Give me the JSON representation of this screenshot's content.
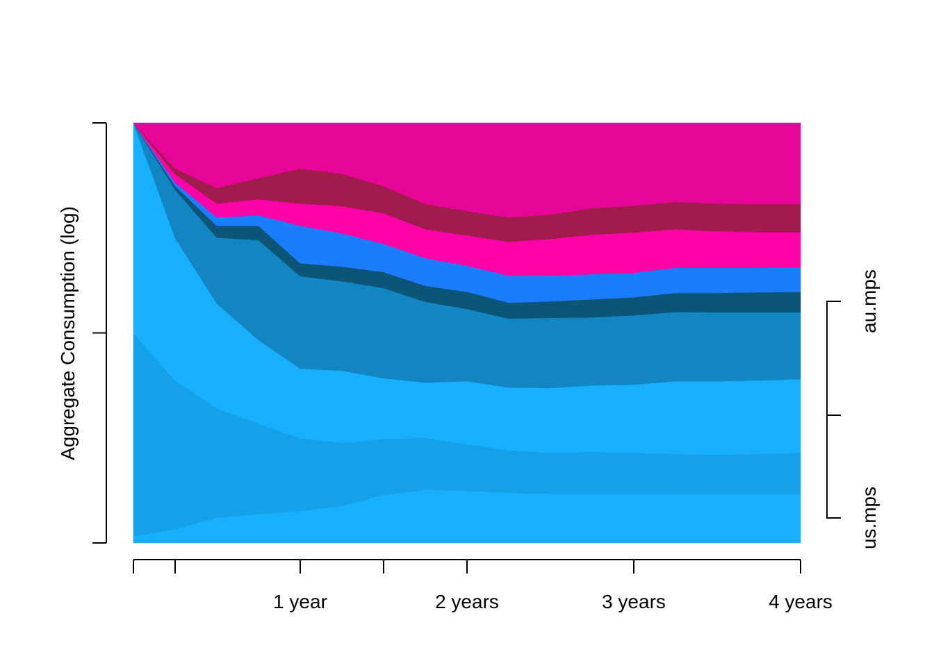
{
  "chart_data": {
    "type": "area",
    "stacked": true,
    "title": "",
    "xlabel": "",
    "ylabel": "Aggregate Consumption (log)",
    "y_scale": "log",
    "grid": false,
    "x": [
      0,
      0.25,
      0.5,
      0.75,
      1,
      1.25,
      1.5,
      1.75,
      2,
      2.25,
      2.5,
      2.75,
      3,
      3.25,
      3.5,
      3.75,
      4
    ],
    "xlim": [
      0,
      4
    ],
    "ylim_fraction": [
      0,
      1
    ],
    "x_ticks": [
      0,
      0.25,
      1,
      1.5,
      2,
      3,
      4
    ],
    "x_tick_labels": [
      {
        "value": 1,
        "label": "1 year"
      },
      {
        "value": 2,
        "label": "2 years"
      },
      {
        "value": 3,
        "label": "3 years"
      },
      {
        "value": 4,
        "label": "4 years"
      }
    ],
    "y_ticks_fraction": [
      0,
      0.5,
      1
    ],
    "layers_cumulative_top": [
      {
        "color": "#18b0fe",
        "values": [
          0.015,
          0.033,
          0.06,
          0.069,
          0.076,
          0.088,
          0.114,
          0.127,
          0.124,
          0.119,
          0.117,
          0.117,
          0.117,
          0.117,
          0.116,
          0.116,
          0.116
        ]
      },
      {
        "color": "#14a1e8",
        "values": [
          0.499,
          0.387,
          0.321,
          0.284,
          0.25,
          0.238,
          0.248,
          0.25,
          0.235,
          0.221,
          0.215,
          0.217,
          0.215,
          0.212,
          0.21,
          0.212,
          0.215
        ]
      },
      {
        "color": "#18b0fe",
        "values": [
          1,
          0.726,
          0.57,
          0.483,
          0.415,
          0.41,
          0.392,
          0.382,
          0.385,
          0.37,
          0.369,
          0.375,
          0.377,
          0.385,
          0.385,
          0.387,
          0.39
        ]
      },
      {
        "color": "#1286c2",
        "values": [
          1,
          0.841,
          0.727,
          0.721,
          0.635,
          0.623,
          0.607,
          0.574,
          0.557,
          0.534,
          0.536,
          0.537,
          0.542,
          0.55,
          0.549,
          0.549,
          0.549
        ]
      },
      {
        "color": "#0c5577",
        "values": [
          1,
          0.85,
          0.755,
          0.755,
          0.666,
          0.658,
          0.645,
          0.612,
          0.598,
          0.572,
          0.575,
          0.58,
          0.585,
          0.595,
          0.595,
          0.597,
          0.598
        ]
      },
      {
        "color": "#1b7cfe",
        "values": [
          1,
          0.858,
          0.775,
          0.78,
          0.755,
          0.737,
          0.712,
          0.678,
          0.66,
          0.636,
          0.636,
          0.64,
          0.643,
          0.655,
          0.655,
          0.655,
          0.656
        ]
      },
      {
        "color": "#fe03a8",
        "values": [
          1,
          0.878,
          0.808,
          0.818,
          0.808,
          0.802,
          0.785,
          0.747,
          0.732,
          0.717,
          0.724,
          0.734,
          0.739,
          0.747,
          0.742,
          0.74,
          0.74
        ]
      },
      {
        "color": "#a01c4c",
        "values": [
          1,
          0.891,
          0.845,
          0.869,
          0.891,
          0.879,
          0.85,
          0.807,
          0.79,
          0.775,
          0.782,
          0.797,
          0.803,
          0.812,
          0.808,
          0.807,
          0.807
        ]
      },
      {
        "color": "#e70598",
        "values": [
          1,
          1,
          1,
          1,
          1,
          1,
          1,
          1,
          1,
          1,
          1,
          1,
          1,
          1,
          1,
          1,
          1
        ]
      }
    ],
    "right_axis": {
      "labels": [
        "au.mps",
        "us.mps"
      ]
    }
  }
}
